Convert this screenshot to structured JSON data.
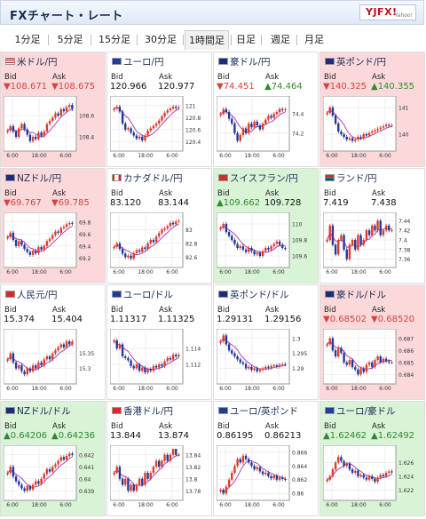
{
  "app": {
    "title": "FXチャート・レート",
    "logo_text": "YJFX!",
    "logo_sub": "Yahoo!"
  },
  "tabs": [
    {
      "label": "1分足",
      "active": false
    },
    {
      "label": "5分足",
      "active": false
    },
    {
      "label": "15分足",
      "active": false
    },
    {
      "label": "30分足",
      "active": false
    },
    {
      "label": "1時間足",
      "active": true
    },
    {
      "label": "日足",
      "active": false
    },
    {
      "label": "週足",
      "active": false
    },
    {
      "label": "月足",
      "active": false
    }
  ],
  "colors": {
    "up_card": "#d8f3d6",
    "down_card": "#fbd9db",
    "candle_up": "#e03b2b",
    "candle_down": "#24389a",
    "ma_line": "#b342b7"
  },
  "pairs": [
    {
      "name": "米ドル/円",
      "flag": "us-flag-icon",
      "state": "down",
      "bid": "▼108.671",
      "ask": "▼108.675",
      "bid_label": "Bid",
      "ask_label": "Ask",
      "chart_data": {
        "type": "candlestick",
        "x_ticks": [
          "6:00",
          "18:00",
          "6:00"
        ],
        "y_ticks": [
          "108.6",
          "108.4"
        ],
        "ylim": [
          108.3,
          108.75
        ],
        "closes": [
          108.46,
          108.5,
          108.45,
          108.4,
          108.48,
          108.52,
          108.47,
          108.42,
          108.36,
          108.4,
          108.38,
          108.44,
          108.41,
          108.45,
          108.52,
          108.55,
          108.58,
          108.62,
          108.6,
          108.66,
          108.64,
          108.68,
          108.7,
          108.66
        ]
      }
    },
    {
      "name": "ユーロ/円",
      "flag": "eu-flag-icon",
      "state": "neutral",
      "bid": "120.966",
      "ask": "120.977",
      "bid_label": "Bid",
      "ask_label": "Ask",
      "chart_data": {
        "type": "candlestick",
        "x_ticks": [
          "6:00",
          "18:00",
          "6:00"
        ],
        "y_ticks": [
          "121",
          "120.8",
          "120.6",
          "120.4"
        ],
        "ylim": [
          120.3,
          121.1
        ],
        "closes": [
          120.95,
          120.98,
          120.9,
          120.7,
          120.6,
          120.62,
          120.55,
          120.5,
          120.45,
          120.48,
          120.42,
          120.5,
          120.58,
          120.62,
          120.66,
          120.7,
          120.75,
          120.82,
          120.88,
          120.92,
          120.95,
          120.98,
          120.96,
          120.97
        ]
      }
    },
    {
      "name": "豪ドル/円",
      "flag": "au-flag-icon",
      "state": "neutral",
      "bid": "▼74.451",
      "ask": "▲74.464",
      "bid_label": "Bid",
      "ask_label": "Ask",
      "chart_data": {
        "type": "candlestick",
        "x_ticks": [
          "6:00",
          "18:00",
          "6:00"
        ],
        "y_ticks": [
          "74.4",
          "74.2"
        ],
        "ylim": [
          74.05,
          74.55
        ],
        "closes": [
          74.4,
          74.45,
          74.42,
          74.35,
          74.3,
          74.2,
          74.12,
          74.18,
          74.25,
          74.2,
          74.3,
          74.26,
          74.32,
          74.28,
          74.24,
          74.3,
          74.34,
          74.38,
          74.36,
          74.4,
          74.42,
          74.45,
          74.44,
          74.45
        ]
      }
    },
    {
      "name": "英ポンド/円",
      "flag": "uk-flag-icon",
      "state": "down",
      "bid": "▼140.325",
      "ask": "▲140.355",
      "bid_label": "Bid",
      "ask_label": "Ask",
      "chart_data": {
        "type": "candlestick",
        "x_ticks": [
          "6:00",
          "18:00",
          "6:00"
        ],
        "y_ticks": [
          "141",
          "140"
        ],
        "ylim": [
          139.5,
          141.3
        ],
        "closes": [
          140.8,
          141.0,
          140.7,
          140.4,
          140.1,
          140.0,
          139.9,
          139.8,
          139.85,
          139.75,
          139.8,
          139.9,
          139.85,
          140.0,
          139.95,
          140.05,
          140.1,
          140.15,
          140.2,
          140.25,
          140.3,
          140.35,
          140.32,
          140.33
        ]
      }
    },
    {
      "name": "NZドル/円",
      "flag": "nz-flag-icon",
      "state": "down",
      "bid": "▼69.767",
      "ask": "▼69.785",
      "bid_label": "Bid",
      "ask_label": "Ask",
      "chart_data": {
        "type": "candlestick",
        "x_ticks": [
          "6:00",
          "18:00",
          "6:00"
        ],
        "y_ticks": [
          "69.8",
          "69.6",
          "69.4",
          "69.2"
        ],
        "ylim": [
          69.1,
          69.9
        ],
        "closes": [
          69.55,
          69.62,
          69.5,
          69.4,
          69.48,
          69.42,
          69.35,
          69.3,
          69.25,
          69.32,
          69.28,
          69.38,
          69.34,
          69.4,
          69.48,
          69.52,
          69.58,
          69.64,
          69.62,
          69.7,
          69.72,
          69.76,
          69.78,
          69.77
        ]
      }
    },
    {
      "name": "カナダドル/円",
      "flag": "ca-flag-icon",
      "state": "neutral",
      "bid": "83.120",
      "ask": "83.144",
      "bid_label": "Bid",
      "ask_label": "Ask",
      "chart_data": {
        "type": "candlestick",
        "x_ticks": [
          "6:00",
          "18:00",
          "6:00"
        ],
        "y_ticks": [
          "83",
          "82.8",
          "82.6"
        ],
        "ylim": [
          82.5,
          83.2
        ],
        "closes": [
          82.75,
          82.8,
          82.72,
          82.65,
          82.6,
          82.62,
          82.58,
          82.66,
          82.7,
          82.68,
          82.74,
          82.72,
          82.8,
          82.85,
          82.82,
          82.9,
          82.95,
          83.0,
          83.02,
          83.05,
          83.1,
          83.08,
          83.12,
          83.13
        ]
      }
    },
    {
      "name": "スイスフラン/円",
      "flag": "ch-flag-icon",
      "state": "up",
      "bid": "▲109.662",
      "ask": "109.728",
      "bid_label": "Bid",
      "ask_label": "Ask",
      "chart_data": {
        "type": "candlestick",
        "x_ticks": [
          "6:00",
          "18:00",
          "6:00"
        ],
        "y_ticks": [
          "110",
          "109.8",
          "109.6"
        ],
        "ylim": [
          109.5,
          110.1
        ],
        "closes": [
          109.95,
          110.0,
          109.9,
          109.85,
          109.8,
          109.75,
          109.7,
          109.72,
          109.68,
          109.65,
          109.7,
          109.66,
          109.62,
          109.64,
          109.6,
          109.66,
          109.7,
          109.68,
          109.72,
          109.75,
          109.78,
          109.74,
          109.7,
          109.69
        ]
      }
    },
    {
      "name": "ランド/円",
      "flag": "za-flag-icon",
      "state": "neutral",
      "bid": "7.419",
      "ask": "7.438",
      "bid_label": "Bid",
      "ask_label": "Ask",
      "chart_data": {
        "type": "candlestick",
        "x_ticks": [
          "6:00",
          "18:00",
          "6:00"
        ],
        "y_ticks": [
          "7.44",
          "7.42",
          "7.4",
          "7.38",
          "7.36"
        ],
        "ylim": [
          7.35,
          7.45
        ],
        "closes": [
          7.4,
          7.43,
          7.39,
          7.37,
          7.4,
          7.41,
          7.38,
          7.36,
          7.39,
          7.4,
          7.38,
          7.41,
          7.39,
          7.4,
          7.42,
          7.41,
          7.43,
          7.42,
          7.44,
          7.41,
          7.42,
          7.43,
          7.42,
          7.42
        ]
      }
    },
    {
      "name": "人民元/円",
      "flag": "cn-flag-icon",
      "state": "neutral",
      "bid": "15.374",
      "ask": "15.404",
      "bid_label": "Bid",
      "ask_label": "Ask",
      "chart_data": {
        "type": "candlestick",
        "x_ticks": [
          "6:00",
          "18:00",
          "6:00"
        ],
        "y_ticks": [
          "15.35",
          "15.3"
        ],
        "ylim": [
          15.26,
          15.42
        ],
        "closes": [
          15.33,
          15.35,
          15.32,
          15.3,
          15.31,
          15.29,
          15.28,
          15.3,
          15.29,
          15.31,
          15.3,
          15.32,
          15.31,
          15.33,
          15.34,
          15.33,
          15.35,
          15.36,
          15.37,
          15.38,
          15.37,
          15.39,
          15.38,
          15.39
        ]
      }
    },
    {
      "name": "ユーロ/ドル",
      "flag": "eu-flag-icon",
      "state": "neutral",
      "bid": "1.11317",
      "ask": "1.11325",
      "bid_label": "Bid",
      "ask_label": "Ask",
      "chart_data": {
        "type": "candlestick",
        "x_ticks": [
          "6:00",
          "18:00",
          "6:00"
        ],
        "y_ticks": [
          "1.114",
          "1.112"
        ],
        "ylim": [
          1.11,
          1.116
        ],
        "closes": [
          1.115,
          1.114,
          1.1145,
          1.113,
          1.1128,
          1.1125,
          1.1118,
          1.1115,
          1.112,
          1.1112,
          1.1116,
          1.111,
          1.1114,
          1.1112,
          1.1118,
          1.1116,
          1.112,
          1.1118,
          1.1124,
          1.1128,
          1.1126,
          1.1132,
          1.113,
          1.1132
        ]
      }
    },
    {
      "name": "英ポンド/ドル",
      "flag": "uk-flag-icon",
      "state": "neutral",
      "bid": "1.29131",
      "ask": "1.29156",
      "bid_label": "Bid",
      "ask_label": "Ask",
      "chart_data": {
        "type": "candlestick",
        "x_ticks": [
          "6:00",
          "18:00",
          "6:00"
        ],
        "y_ticks": [
          "1.3",
          "1.295",
          "1.29"
        ],
        "ylim": [
          1.286,
          1.302
        ],
        "closes": [
          1.299,
          1.301,
          1.298,
          1.296,
          1.295,
          1.294,
          1.293,
          1.292,
          1.2915,
          1.29,
          1.2905,
          1.2895,
          1.29,
          1.289,
          1.2895,
          1.29,
          1.2905,
          1.2902,
          1.2908,
          1.291,
          1.2906,
          1.2912,
          1.2914,
          1.2913
        ]
      }
    },
    {
      "name": "豪ドル/ドル",
      "flag": "au-flag-icon",
      "state": "down",
      "bid": "▼0.68502",
      "ask": "▼0.68520",
      "bid_label": "Bid",
      "ask_label": "Ask",
      "chart_data": {
        "type": "candlestick",
        "x_ticks": [
          "6:00",
          "18:00",
          "6:00"
        ],
        "y_ticks": [
          "0.687",
          "0.686",
          "0.685",
          "0.684"
        ],
        "ylim": [
          0.6835,
          0.6875
        ],
        "closes": [
          0.6865,
          0.687,
          0.686,
          0.6855,
          0.6862,
          0.6858,
          0.685,
          0.6848,
          0.6852,
          0.6846,
          0.6844,
          0.684,
          0.6845,
          0.6842,
          0.6848,
          0.685,
          0.6846,
          0.6852,
          0.6855,
          0.685,
          0.6853,
          0.6851,
          0.685,
          0.685
        ]
      }
    },
    {
      "name": "NZドル/ドル",
      "flag": "nz-flag-icon",
      "state": "up",
      "bid": "▲0.64206",
      "ask": "▲0.64236",
      "bid_label": "Bid",
      "ask_label": "Ask",
      "chart_data": {
        "type": "candlestick",
        "x_ticks": [
          "6:00",
          "18:00",
          "6:00"
        ],
        "y_ticks": [
          "0.642",
          "0.641",
          "0.64",
          "0.639"
        ],
        "ylim": [
          0.6385,
          0.6425
        ],
        "closes": [
          0.6405,
          0.641,
          0.6402,
          0.6398,
          0.6395,
          0.6392,
          0.639,
          0.6394,
          0.6391,
          0.6395,
          0.6398,
          0.6396,
          0.64,
          0.6404,
          0.6408,
          0.6406,
          0.641,
          0.6412,
          0.6415,
          0.6418,
          0.6416,
          0.6419,
          0.6421,
          0.642
        ]
      }
    },
    {
      "name": "香港ドル/円",
      "flag": "hk-flag-icon",
      "state": "neutral",
      "bid": "13.844",
      "ask": "13.874",
      "bid_label": "Bid",
      "ask_label": "Ask",
      "chart_data": {
        "type": "candlestick",
        "x_ticks": [
          "6:00",
          "18:00",
          "6:00"
        ],
        "y_ticks": [
          "13.84",
          "13.82",
          "13.8",
          "13.78"
        ],
        "ylim": [
          13.77,
          13.85
        ],
        "closes": [
          13.81,
          13.82,
          13.8,
          13.79,
          13.8,
          13.78,
          13.79,
          13.78,
          13.79,
          13.8,
          13.79,
          13.81,
          13.8,
          13.81,
          13.82,
          13.83,
          13.82,
          13.83,
          13.84,
          13.83,
          13.84,
          13.85,
          13.84,
          13.84
        ]
      }
    },
    {
      "name": "ユーロ/英ポンド",
      "flag": "eu-flag-icon",
      "state": "neutral",
      "bid": "0.86195",
      "ask": "0.86213",
      "bid_label": "Bid",
      "ask_label": "Ask",
      "chart_data": {
        "type": "candlestick",
        "x_ticks": [
          "6:00",
          "18:00",
          "6:00"
        ],
        "y_ticks": [
          "0.866",
          "0.864",
          "0.862",
          "0.86"
        ],
        "ylim": [
          0.8595,
          0.8665
        ],
        "closes": [
          0.8605,
          0.86,
          0.861,
          0.862,
          0.863,
          0.864,
          0.865,
          0.8645,
          0.8655,
          0.865,
          0.8645,
          0.864,
          0.8635,
          0.8638,
          0.8632,
          0.8628,
          0.863,
          0.8625,
          0.8622,
          0.8626,
          0.862,
          0.8623,
          0.8621,
          0.862
        ]
      }
    },
    {
      "name": "ユーロ/豪ドル",
      "flag": "eu-flag-icon",
      "state": "up",
      "bid": "▲1.62462",
      "ask": "▲1.62492",
      "bid_label": "Bid",
      "ask_label": "Ask",
      "chart_data": {
        "type": "candlestick",
        "x_ticks": [
          "6:00",
          "18:00",
          "6:00"
        ],
        "y_ticks": [
          "1.626",
          "1.624",
          "1.622"
        ],
        "ylim": [
          1.621,
          1.628
        ],
        "closes": [
          1.6235,
          1.624,
          1.625,
          1.626,
          1.6268,
          1.6262,
          1.6255,
          1.6258,
          1.625,
          1.6245,
          1.6248,
          1.624,
          1.6242,
          1.6238,
          1.6235,
          1.624,
          1.6236,
          1.6232,
          1.6238,
          1.6242,
          1.624,
          1.6245,
          1.6247,
          1.6246
        ]
      }
    }
  ]
}
